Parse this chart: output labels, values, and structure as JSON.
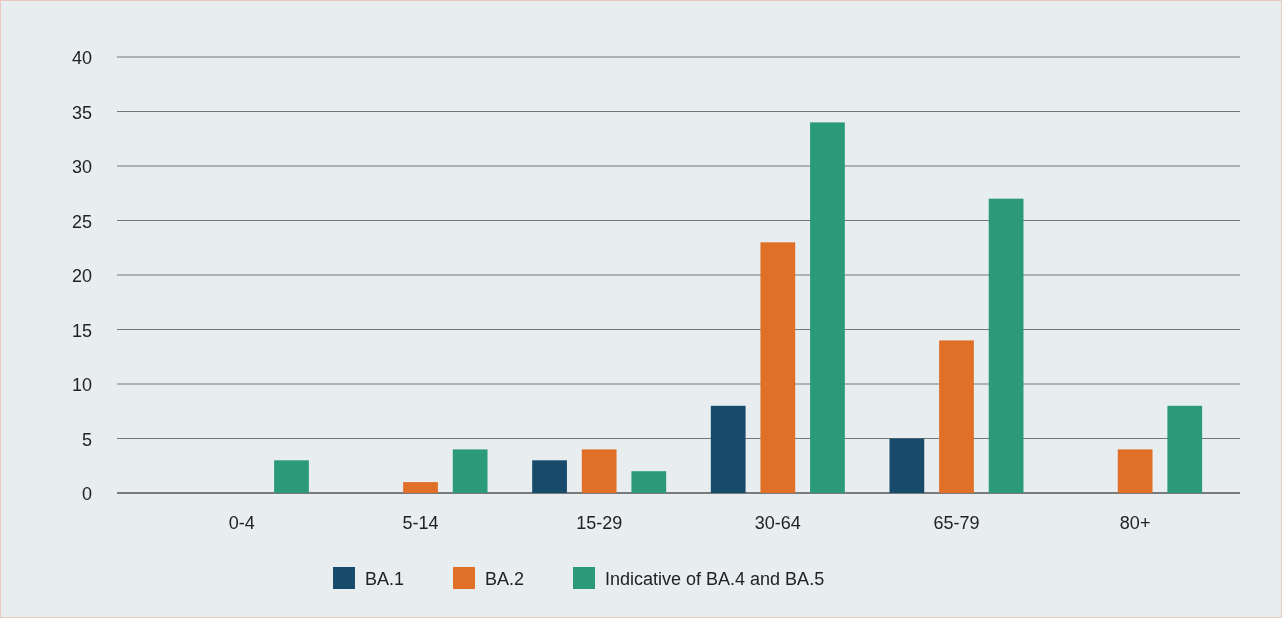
{
  "chart_data": {
    "type": "bar",
    "categories": [
      "0-4",
      "5-14",
      "15-29",
      "30-64",
      "65-79",
      "80+"
    ],
    "series": [
      {
        "name": "BA.1",
        "color": "#174a6b",
        "values": [
          null,
          null,
          3,
          8,
          5,
          null
        ]
      },
      {
        "name": "BA.2",
        "color": "#e07028",
        "values": [
          null,
          1,
          4,
          23,
          14,
          4
        ]
      },
      {
        "name": "Indicative of BA.4 and BA.5",
        "color": "#2a9a78",
        "values": [
          3,
          4,
          2,
          34,
          27,
          8
        ]
      }
    ],
    "ylim": [
      0,
      40
    ],
    "yticks": [
      0,
      5,
      10,
      15,
      20,
      25,
      30,
      35,
      40
    ],
    "grid": "y",
    "legend": "bottom"
  }
}
